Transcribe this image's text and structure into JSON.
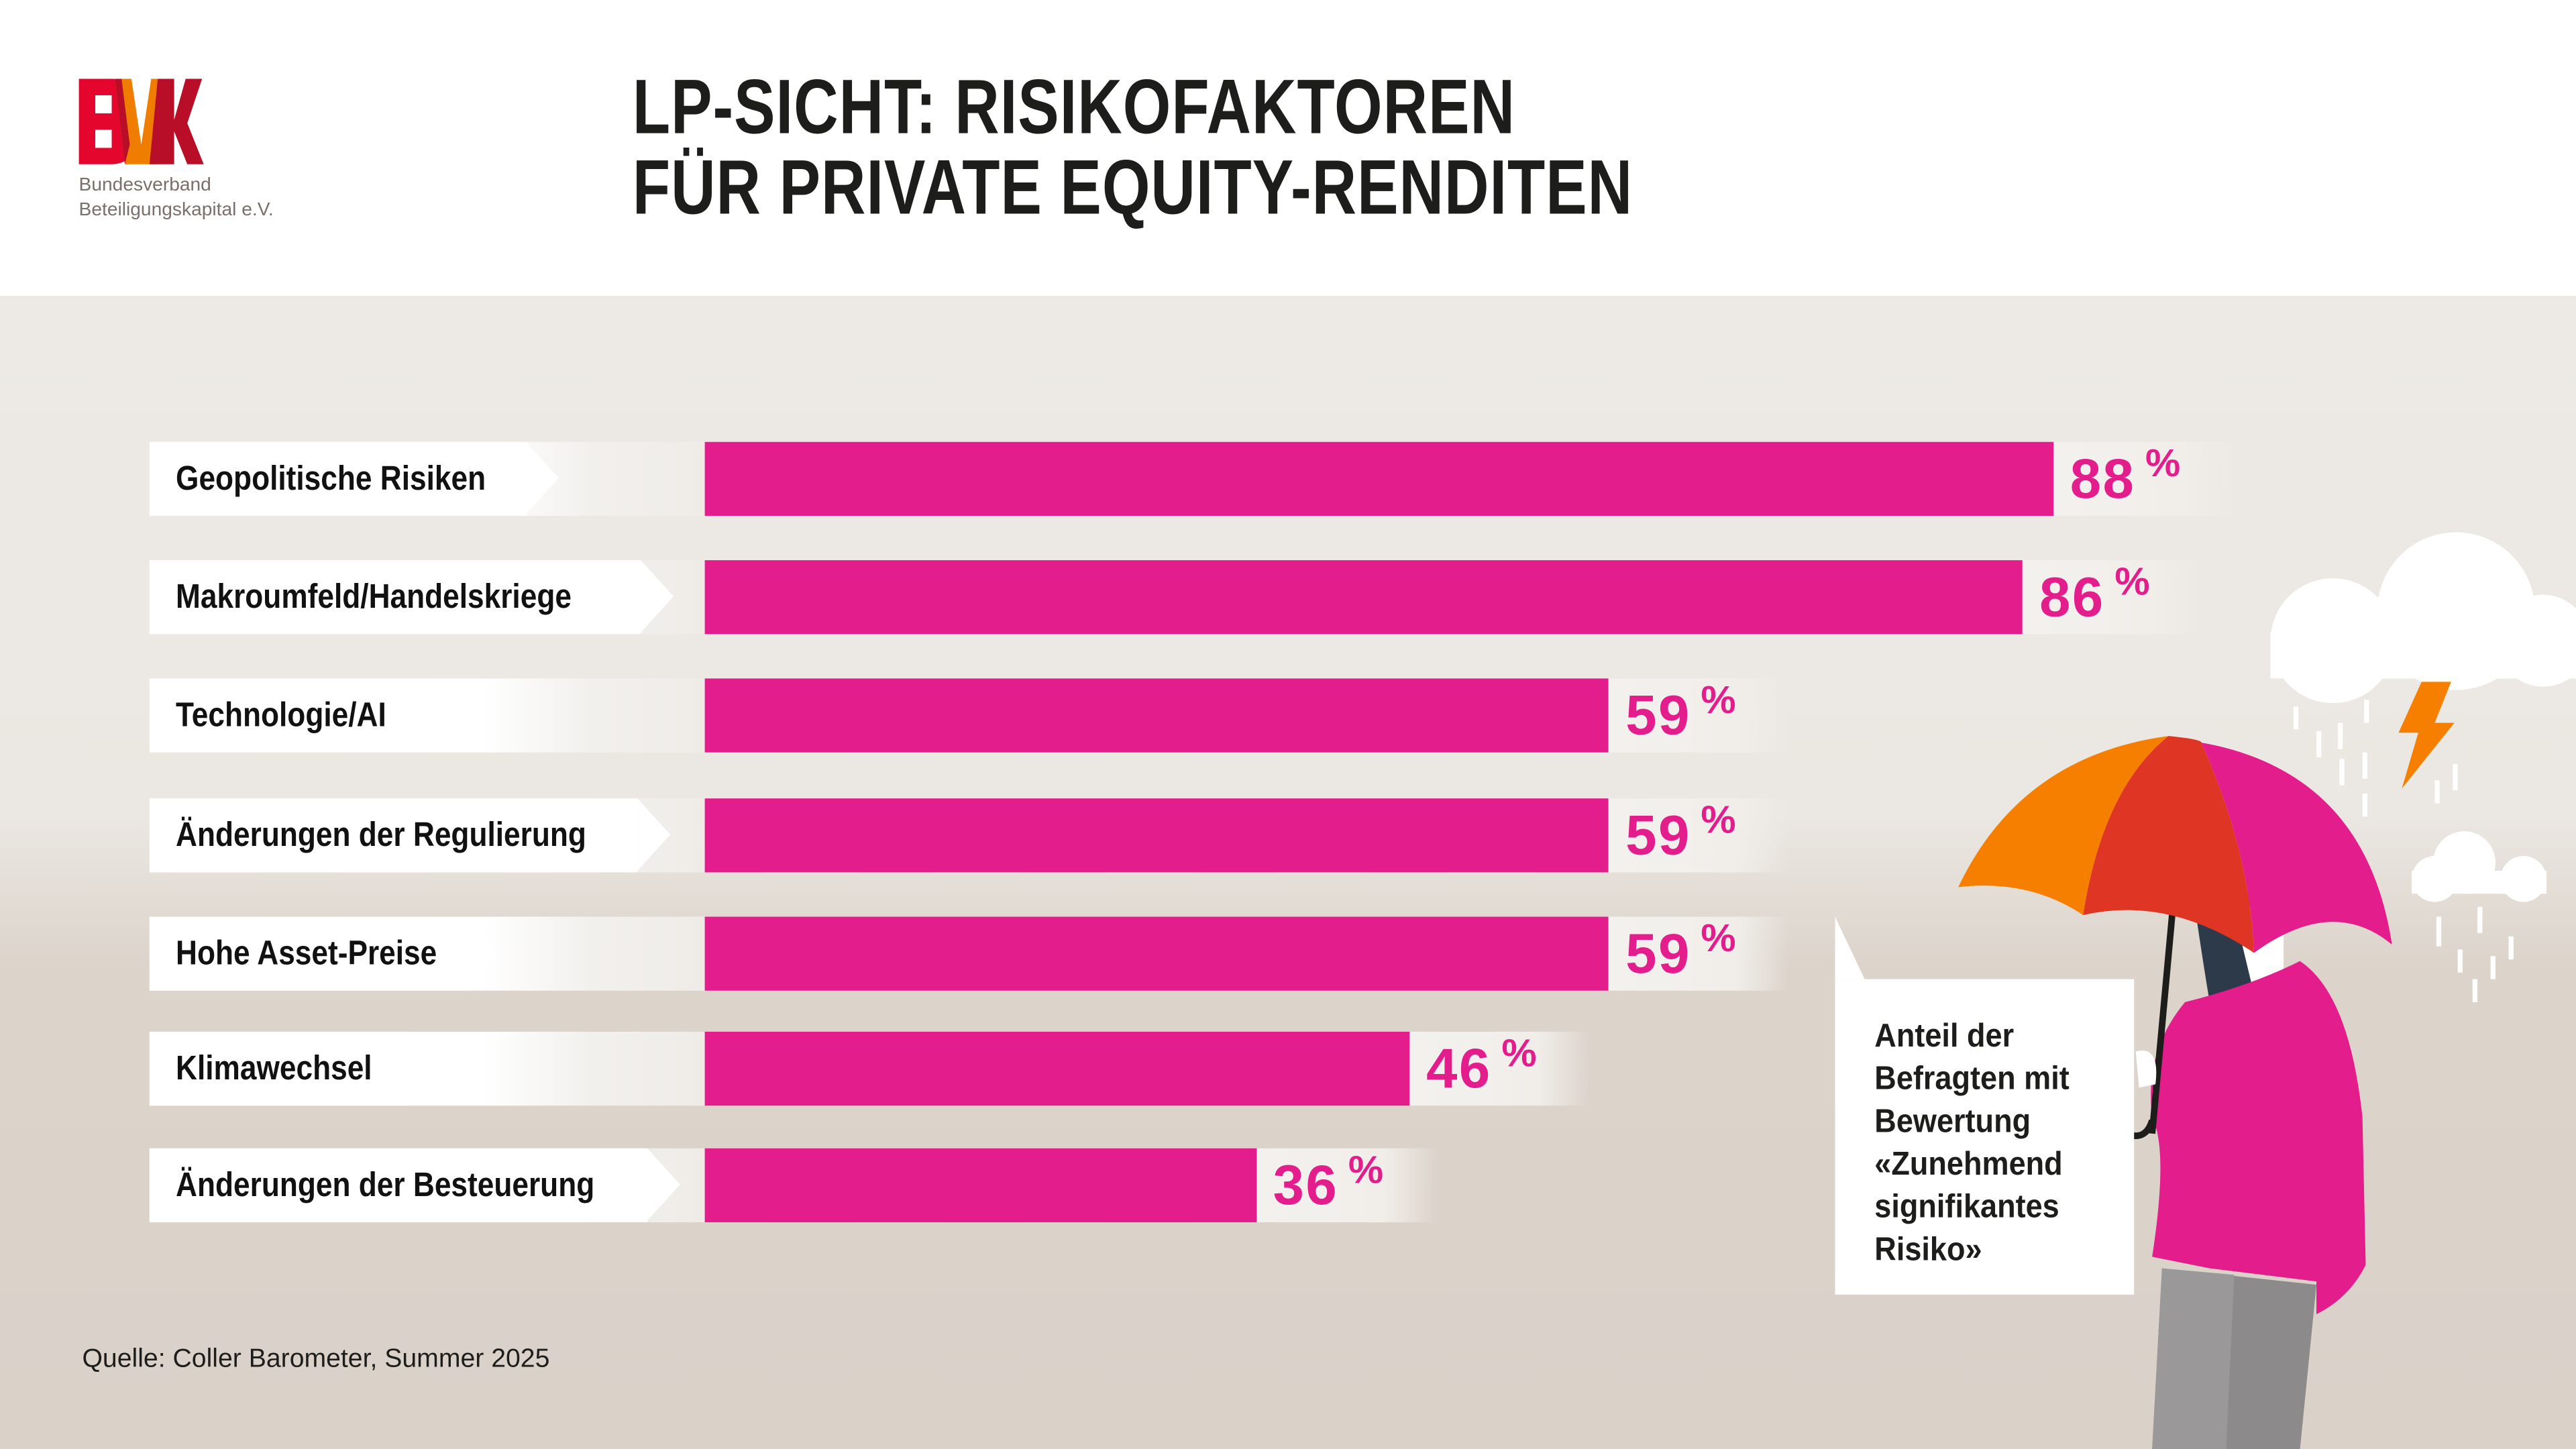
{
  "logo": {
    "text": "BVK",
    "subtitle_line1": "Bundesverband",
    "subtitle_line2": "Beteiligungskapital e.V."
  },
  "title": {
    "line1": "LP-SICHT: RISIKOFAKTOREN",
    "line2": "FÜR PRIVATE EQUITY-RENDITEN"
  },
  "callout": {
    "text": "Anteil der\nBefragten mit\nBewertung\n«Zunehmend\nsignifikantes\nRisiko»"
  },
  "source": "Quelle: Coller Barometer, Summer 2025",
  "colors": {
    "bar": "#e31e8c",
    "text": "#1d1d1b",
    "umbrella_orange": "#f77f00",
    "umbrella_red": "#de3524"
  },
  "chart_data": {
    "type": "bar",
    "orientation": "horizontal",
    "title": "LP-Sicht: Risikofaktoren für Private Equity-Renditen",
    "unit": "%",
    "xlim": [
      0,
      100
    ],
    "categories": [
      "Geopolitische Risiken",
      "Makroumfeld/Handelskriege",
      "Technologie/AI",
      "Änderungen der Regulierung",
      "Hohe Asset-Preise",
      "Klimawechsel",
      "Änderungen der Besteuerung"
    ],
    "values": [
      88,
      86,
      59,
      59,
      59,
      46,
      36
    ],
    "value_labels": [
      "88",
      "86",
      "59",
      "59",
      "59",
      "46",
      "36"
    ],
    "grid": false
  }
}
